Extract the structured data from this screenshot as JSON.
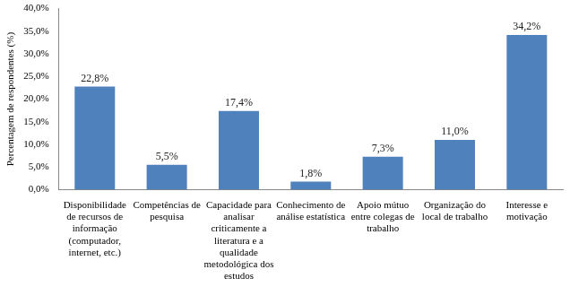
{
  "chart_data": {
    "type": "bar",
    "y_label": "Percentagem de respondentes (%)",
    "categories": [
      "Disponibilidade de recursos de informação (computador, internet, etc.)",
      "Competências de pesquisa",
      "Capacidade para analisar criticamente a literatura e a qualidade metodológica dos estudos",
      "Conhecimento de análise estatística",
      "Apoio mútuo entre colegas de trabalho",
      "Organização do local de trabalho",
      "Interesse e motivação"
    ],
    "values": [
      22.8,
      5.5,
      17.4,
      1.8,
      7.3,
      11.0,
      34.2
    ],
    "value_labels": [
      "22,8%",
      "5,5%",
      "17,4%",
      "1,8%",
      "7,3%",
      "11,0%",
      "34,2%"
    ],
    "color": "#4f81bd",
    "ylim": [
      0,
      40
    ],
    "yticks": [
      {
        "value": 0,
        "label": "0,0%"
      },
      {
        "value": 5,
        "label": "5,0%"
      },
      {
        "value": 10,
        "label": "10,0%"
      },
      {
        "value": 15,
        "label": "15,0%"
      },
      {
        "value": 20,
        "label": "20,0%"
      },
      {
        "value": 25,
        "label": "25,0%"
      },
      {
        "value": 30,
        "label": "30,0%"
      },
      {
        "value": 35,
        "label": "35,0%"
      },
      {
        "value": 40,
        "label": "40,0%"
      }
    ],
    "grid": false,
    "data_labels": true
  }
}
